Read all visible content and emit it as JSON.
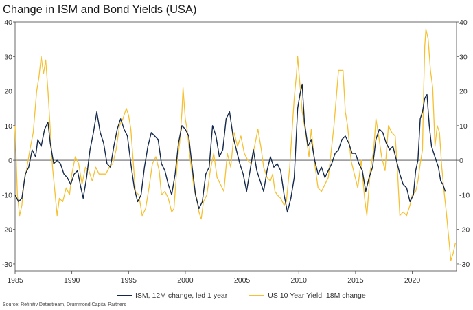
{
  "chart_data": {
    "type": "line",
    "title": "Change in ISM and Bond Yields (USA)",
    "xlim": [
      1985,
      2023.9
    ],
    "ylim": [
      -32,
      40
    ],
    "x_ticks": [
      "1985",
      "1990",
      "1995",
      "2000",
      "2005",
      "2010",
      "2015",
      "2020"
    ],
    "y_ticks": [
      "40",
      "30",
      "20",
      "10",
      "0",
      "-10",
      "-20",
      "-30"
    ],
    "zero_line": true,
    "legend_position": "bottom",
    "source": "Source: Refinitiv Datastream, Drummond Capital Partners",
    "series": [
      {
        "name": "ISM, 12M change, led 1 year",
        "color": "#13284b",
        "points": [
          [
            1985.0,
            -10
          ],
          [
            1985.3,
            -12
          ],
          [
            1985.6,
            -11
          ],
          [
            1985.9,
            -4
          ],
          [
            1986.2,
            -2
          ],
          [
            1986.5,
            3
          ],
          [
            1986.8,
            1
          ],
          [
            1987.0,
            6
          ],
          [
            1987.3,
            4
          ],
          [
            1987.6,
            9
          ],
          [
            1987.9,
            11
          ],
          [
            1988.1,
            5
          ],
          [
            1988.4,
            -1
          ],
          [
            1988.7,
            0
          ],
          [
            1989.0,
            -1
          ],
          [
            1989.3,
            -4
          ],
          [
            1989.6,
            -5
          ],
          [
            1989.9,
            -7
          ],
          [
            1990.2,
            -4
          ],
          [
            1990.5,
            -3
          ],
          [
            1990.8,
            -8
          ],
          [
            1991.0,
            -11
          ],
          [
            1991.3,
            -5
          ],
          [
            1991.6,
            3
          ],
          [
            1991.9,
            8
          ],
          [
            1992.2,
            14
          ],
          [
            1992.5,
            8
          ],
          [
            1992.8,
            5
          ],
          [
            1993.1,
            -1
          ],
          [
            1993.4,
            -2
          ],
          [
            1993.7,
            4
          ],
          [
            1994.0,
            9
          ],
          [
            1994.3,
            12
          ],
          [
            1994.6,
            9
          ],
          [
            1994.9,
            7
          ],
          [
            1995.2,
            -1
          ],
          [
            1995.5,
            -8
          ],
          [
            1995.8,
            -12
          ],
          [
            1996.1,
            -10
          ],
          [
            1996.4,
            -2
          ],
          [
            1996.7,
            4
          ],
          [
            1997.0,
            8
          ],
          [
            1997.3,
            7
          ],
          [
            1997.6,
            6
          ],
          [
            1997.9,
            -1
          ],
          [
            1998.2,
            -3
          ],
          [
            1998.5,
            -7
          ],
          [
            1998.8,
            -10
          ],
          [
            1999.1,
            -4
          ],
          [
            1999.4,
            5
          ],
          [
            1999.7,
            10
          ],
          [
            2000.0,
            9
          ],
          [
            2000.3,
            7
          ],
          [
            2000.6,
            -2
          ],
          [
            2000.9,
            -10
          ],
          [
            2001.2,
            -14
          ],
          [
            2001.5,
            -12
          ],
          [
            2001.8,
            -4
          ],
          [
            2002.1,
            -2
          ],
          [
            2002.4,
            10
          ],
          [
            2002.7,
            7
          ],
          [
            2003.0,
            1
          ],
          [
            2003.3,
            3
          ],
          [
            2003.6,
            12
          ],
          [
            2003.9,
            14
          ],
          [
            2004.2,
            7
          ],
          [
            2004.5,
            3
          ],
          [
            2004.8,
            -1
          ],
          [
            2005.1,
            -4
          ],
          [
            2005.4,
            -9
          ],
          [
            2005.7,
            -3
          ],
          [
            2006.0,
            3
          ],
          [
            2006.3,
            -3
          ],
          [
            2006.6,
            -6
          ],
          [
            2006.9,
            -9
          ],
          [
            2007.2,
            -3
          ],
          [
            2007.5,
            1
          ],
          [
            2007.8,
            -2
          ],
          [
            2008.1,
            -1
          ],
          [
            2008.4,
            -3
          ],
          [
            2008.7,
            -10
          ],
          [
            2009.0,
            -15
          ],
          [
            2009.3,
            -11
          ],
          [
            2009.6,
            -5
          ],
          [
            2009.9,
            15
          ],
          [
            2010.1,
            19
          ],
          [
            2010.3,
            22
          ],
          [
            2010.5,
            11
          ],
          [
            2010.8,
            4
          ],
          [
            2011.1,
            6
          ],
          [
            2011.4,
            0
          ],
          [
            2011.7,
            -4
          ],
          [
            2012.0,
            -2
          ],
          [
            2012.3,
            -5
          ],
          [
            2012.6,
            -3
          ],
          [
            2012.9,
            -1
          ],
          [
            2013.2,
            2
          ],
          [
            2013.5,
            3
          ],
          [
            2013.8,
            6
          ],
          [
            2014.1,
            7
          ],
          [
            2014.4,
            5
          ],
          [
            2014.7,
            2
          ],
          [
            2015.0,
            2
          ],
          [
            2015.3,
            -1
          ],
          [
            2015.6,
            -3
          ],
          [
            2015.9,
            -9
          ],
          [
            2016.2,
            -5
          ],
          [
            2016.5,
            -2
          ],
          [
            2016.8,
            6
          ],
          [
            2017.1,
            9
          ],
          [
            2017.4,
            8
          ],
          [
            2017.7,
            5
          ],
          [
            2018.0,
            3
          ],
          [
            2018.3,
            4
          ],
          [
            2018.6,
            0
          ],
          [
            2018.9,
            -4
          ],
          [
            2019.2,
            -7
          ],
          [
            2019.5,
            -8
          ],
          [
            2019.8,
            -12
          ],
          [
            2020.1,
            -10
          ],
          [
            2020.3,
            -3
          ],
          [
            2020.5,
            0
          ],
          [
            2020.7,
            12
          ],
          [
            2020.9,
            14
          ],
          [
            2021.1,
            18
          ],
          [
            2021.3,
            19
          ],
          [
            2021.5,
            10
          ],
          [
            2021.7,
            4
          ],
          [
            2021.9,
            2
          ],
          [
            2022.1,
            0
          ],
          [
            2022.3,
            -2
          ],
          [
            2022.5,
            -6
          ],
          [
            2022.7,
            -7
          ],
          [
            2022.9,
            -9
          ]
        ]
      },
      {
        "name": "US 10 Year Yield, 18M change",
        "color": "#f5c133",
        "points": [
          [
            1985.0,
            10
          ],
          [
            1985.2,
            -10
          ],
          [
            1985.4,
            -16
          ],
          [
            1985.6,
            -13
          ],
          [
            1985.8,
            -6
          ],
          [
            1986.0,
            -3
          ],
          [
            1986.3,
            3
          ],
          [
            1986.6,
            8
          ],
          [
            1986.9,
            20
          ],
          [
            1987.1,
            24
          ],
          [
            1987.3,
            30
          ],
          [
            1987.5,
            25
          ],
          [
            1987.7,
            29
          ],
          [
            1987.9,
            20
          ],
          [
            1988.1,
            9
          ],
          [
            1988.3,
            -2
          ],
          [
            1988.5,
            -9
          ],
          [
            1988.7,
            -16
          ],
          [
            1988.9,
            -11
          ],
          [
            1989.2,
            -12
          ],
          [
            1989.5,
            -8
          ],
          [
            1989.8,
            -10
          ],
          [
            1990.0,
            -4
          ],
          [
            1990.3,
            1
          ],
          [
            1990.6,
            -1
          ],
          [
            1990.9,
            -7
          ],
          [
            1991.2,
            -2
          ],
          [
            1991.5,
            -3
          ],
          [
            1991.8,
            -6
          ],
          [
            1992.1,
            -2
          ],
          [
            1992.4,
            -4
          ],
          [
            1992.7,
            -4
          ],
          [
            1993.0,
            -4
          ],
          [
            1993.3,
            -2
          ],
          [
            1993.6,
            -1
          ],
          [
            1993.9,
            3
          ],
          [
            1994.2,
            10
          ],
          [
            1994.5,
            12
          ],
          [
            1994.8,
            15
          ],
          [
            1995.0,
            13
          ],
          [
            1995.2,
            9
          ],
          [
            1995.4,
            0
          ],
          [
            1995.6,
            -9
          ],
          [
            1995.9,
            -10
          ],
          [
            1996.2,
            -16
          ],
          [
            1996.5,
            -14
          ],
          [
            1996.8,
            -8
          ],
          [
            1997.1,
            -1
          ],
          [
            1997.4,
            1
          ],
          [
            1997.7,
            -3
          ],
          [
            1997.9,
            -10
          ],
          [
            1998.2,
            -9
          ],
          [
            1998.5,
            -11
          ],
          [
            1998.8,
            -15
          ],
          [
            1999.0,
            -14
          ],
          [
            1999.3,
            0
          ],
          [
            1999.5,
            5
          ],
          [
            1999.7,
            14
          ],
          [
            1999.8,
            21
          ],
          [
            2000.0,
            12
          ],
          [
            2000.2,
            8
          ],
          [
            2000.4,
            1
          ],
          [
            2000.6,
            -4
          ],
          [
            2000.8,
            -9
          ],
          [
            2001.0,
            -11
          ],
          [
            2001.2,
            -15
          ],
          [
            2001.4,
            -17
          ],
          [
            2001.6,
            -12
          ],
          [
            2001.9,
            -10
          ],
          [
            2002.2,
            -3
          ],
          [
            2002.5,
            2
          ],
          [
            2002.8,
            -5
          ],
          [
            2003.1,
            -7
          ],
          [
            2003.4,
            -9
          ],
          [
            2003.7,
            2
          ],
          [
            2004.0,
            -2
          ],
          [
            2004.3,
            8
          ],
          [
            2004.6,
            4
          ],
          [
            2004.9,
            7
          ],
          [
            2005.2,
            2
          ],
          [
            2005.5,
            0
          ],
          [
            2005.8,
            -1
          ],
          [
            2006.1,
            4
          ],
          [
            2006.4,
            9
          ],
          [
            2006.7,
            3
          ],
          [
            2006.9,
            -2
          ],
          [
            2007.2,
            -5
          ],
          [
            2007.5,
            -6
          ],
          [
            2007.7,
            -4
          ],
          [
            2007.9,
            -9
          ],
          [
            2008.1,
            -10
          ],
          [
            2008.4,
            -11
          ],
          [
            2008.7,
            -13
          ],
          [
            2008.9,
            -12
          ],
          [
            2009.2,
            -2
          ],
          [
            2009.4,
            8
          ],
          [
            2009.6,
            18
          ],
          [
            2009.8,
            25
          ],
          [
            2009.9,
            30
          ],
          [
            2010.1,
            22
          ],
          [
            2010.3,
            14
          ],
          [
            2010.6,
            8
          ],
          [
            2010.9,
            1
          ],
          [
            2011.1,
            9
          ],
          [
            2011.4,
            -1
          ],
          [
            2011.7,
            -8
          ],
          [
            2012.0,
            -9
          ],
          [
            2012.3,
            -7
          ],
          [
            2012.6,
            -5
          ],
          [
            2012.9,
            4
          ],
          [
            2013.1,
            10
          ],
          [
            2013.3,
            18
          ],
          [
            2013.5,
            26
          ],
          [
            2013.7,
            26
          ],
          [
            2013.9,
            26
          ],
          [
            2014.1,
            14
          ],
          [
            2014.3,
            10
          ],
          [
            2014.6,
            0
          ],
          [
            2014.9,
            -4
          ],
          [
            2015.2,
            -8
          ],
          [
            2015.5,
            0
          ],
          [
            2015.8,
            -11
          ],
          [
            2016.0,
            -16
          ],
          [
            2016.3,
            -3
          ],
          [
            2016.6,
            3
          ],
          [
            2016.8,
            12
          ],
          [
            2017.0,
            8
          ],
          [
            2017.3,
            1
          ],
          [
            2017.6,
            -3
          ],
          [
            2017.9,
            10
          ],
          [
            2018.2,
            8
          ],
          [
            2018.5,
            7
          ],
          [
            2018.7,
            -3
          ],
          [
            2018.9,
            -16
          ],
          [
            2019.2,
            -15
          ],
          [
            2019.5,
            -16
          ],
          [
            2019.8,
            -13
          ],
          [
            2020.0,
            -10
          ],
          [
            2020.3,
            -9
          ],
          [
            2020.5,
            -6
          ],
          [
            2020.7,
            -1
          ],
          [
            2020.9,
            3
          ],
          [
            2021.0,
            20
          ],
          [
            2021.1,
            33
          ],
          [
            2021.2,
            38
          ],
          [
            2021.4,
            35
          ],
          [
            2021.6,
            26
          ],
          [
            2021.8,
            21
          ],
          [
            2022.0,
            4
          ],
          [
            2022.2,
            10
          ],
          [
            2022.4,
            8
          ],
          [
            2022.6,
            -2
          ],
          [
            2022.8,
            -9
          ],
          [
            2023.0,
            -15
          ],
          [
            2023.2,
            -22
          ],
          [
            2023.4,
            -29
          ],
          [
            2023.6,
            -27
          ],
          [
            2023.8,
            -24
          ]
        ]
      }
    ]
  }
}
